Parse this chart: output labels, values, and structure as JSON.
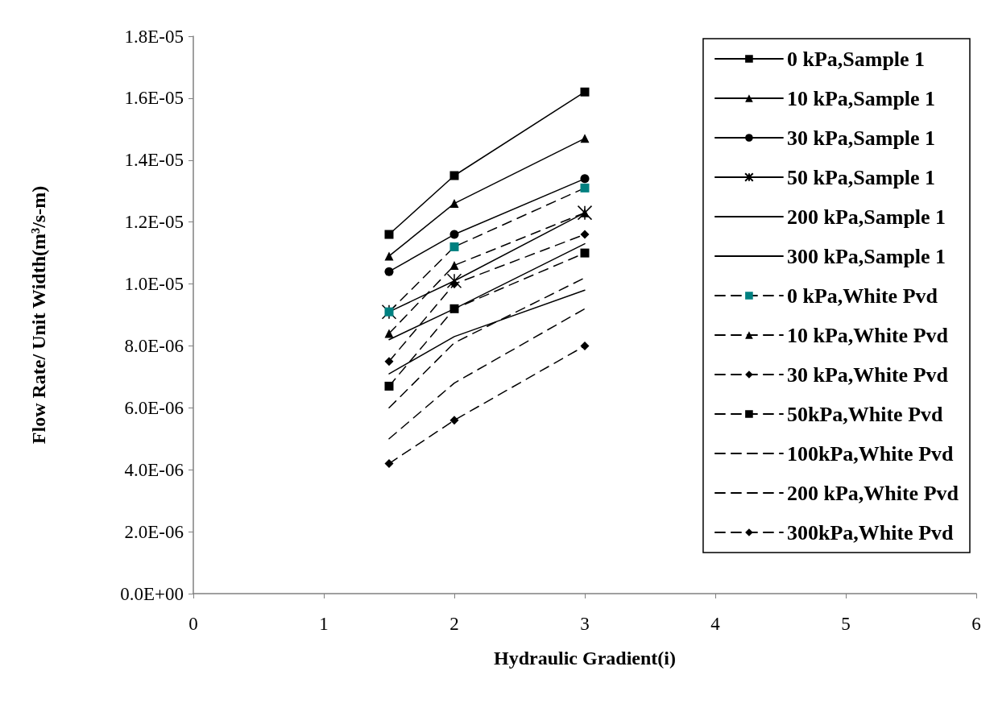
{
  "chart_data": {
    "type": "line",
    "xlabel": "Hydraulic Gradient(i)",
    "ylabel": "Flow Rate/ Unit Width(m³/s-m)",
    "x": [
      1.5,
      2,
      3
    ],
    "xlim": [
      0,
      6
    ],
    "xticks": [
      0,
      1,
      2,
      3,
      4,
      5,
      6
    ],
    "ylim": [
      0,
      1.8e-05
    ],
    "yticks": [
      {
        "value": 0,
        "label": "0.0E+00"
      },
      {
        "value": 2e-06,
        "label": "2.0E-06"
      },
      {
        "value": 4e-06,
        "label": "4.0E-06"
      },
      {
        "value": 6e-06,
        "label": "6.0E-06"
      },
      {
        "value": 8e-06,
        "label": "8.0E-06"
      },
      {
        "value": 1e-05,
        "label": "1.0E-05"
      },
      {
        "value": 1.2e-05,
        "label": "1.2E-05"
      },
      {
        "value": 1.4e-05,
        "label": "1.4E-05"
      },
      {
        "value": 1.6e-05,
        "label": "1.6E-05"
      },
      {
        "value": 1.8e-05,
        "label": "1.8E-05"
      }
    ],
    "grid": false,
    "legend": "top right",
    "series": [
      {
        "name": "0 kPa,Sample 1",
        "color": "#000000",
        "marker": "square",
        "line_style": "solid",
        "values": [
          1.16e-05,
          1.35e-05,
          1.62e-05
        ]
      },
      {
        "name": "10 kPa,Sample 1",
        "color": "#000000",
        "marker": "triangle",
        "line_style": "solid",
        "values": [
          1.09e-05,
          1.26e-05,
          1.47e-05
        ]
      },
      {
        "name": "30 kPa,Sample 1",
        "color": "#000000",
        "marker": "circle",
        "line_style": "solid",
        "values": [
          1.04e-05,
          1.16e-05,
          1.34e-05
        ]
      },
      {
        "name": "50 kPa,Sample 1",
        "color": "#000000",
        "marker": "cross",
        "line_style": "solid",
        "values": [
          9.1e-06,
          1.01e-05,
          1.23e-05
        ]
      },
      {
        "name": "200 kPa,Sample 1",
        "color": "#000000",
        "marker": "none",
        "line_style": "solid",
        "values": [
          8.2e-06,
          9.2e-06,
          1.13e-05
        ]
      },
      {
        "name": "300 kPa,Sample 1",
        "color": "#000000",
        "marker": "none",
        "line_style": "solid",
        "values": [
          7.1e-06,
          8.3e-06,
          9.8e-06
        ]
      },
      {
        "name": "0 kPa,White Pvd",
        "color": "#008080",
        "marker": "square",
        "line_style": "dashed",
        "values": [
          9.1e-06,
          1.12e-05,
          1.31e-05
        ]
      },
      {
        "name": "10 kPa,White Pvd",
        "color": "#000000",
        "marker": "triangle",
        "line_style": "dashed",
        "values": [
          8.4e-06,
          1.06e-05,
          1.23e-05
        ]
      },
      {
        "name": "30 kPa,White Pvd",
        "color": "#000000",
        "marker": "diamond",
        "line_style": "dashed",
        "values": [
          7.5e-06,
          1e-05,
          1.16e-05
        ]
      },
      {
        "name": "50kPa,White Pvd",
        "color": "#000000",
        "marker": "square",
        "line_style": "dashed",
        "values": [
          6.7e-06,
          9.2e-06,
          1.1e-05
        ]
      },
      {
        "name": "100kPa,White Pvd",
        "color": "#000000",
        "marker": "none",
        "line_style": "dashed",
        "values": [
          6e-06,
          8.1e-06,
          1.02e-05
        ]
      },
      {
        "name": "200 kPa,White Pvd",
        "color": "#000000",
        "marker": "none",
        "line_style": "dashed",
        "values": [
          5e-06,
          6.8e-06,
          9.2e-06
        ]
      },
      {
        "name": "300kPa,White Pvd",
        "color": "#000000",
        "marker": "diamond",
        "line_style": "dashed",
        "values": [
          4.2e-06,
          5.6e-06,
          8e-06
        ]
      }
    ]
  }
}
